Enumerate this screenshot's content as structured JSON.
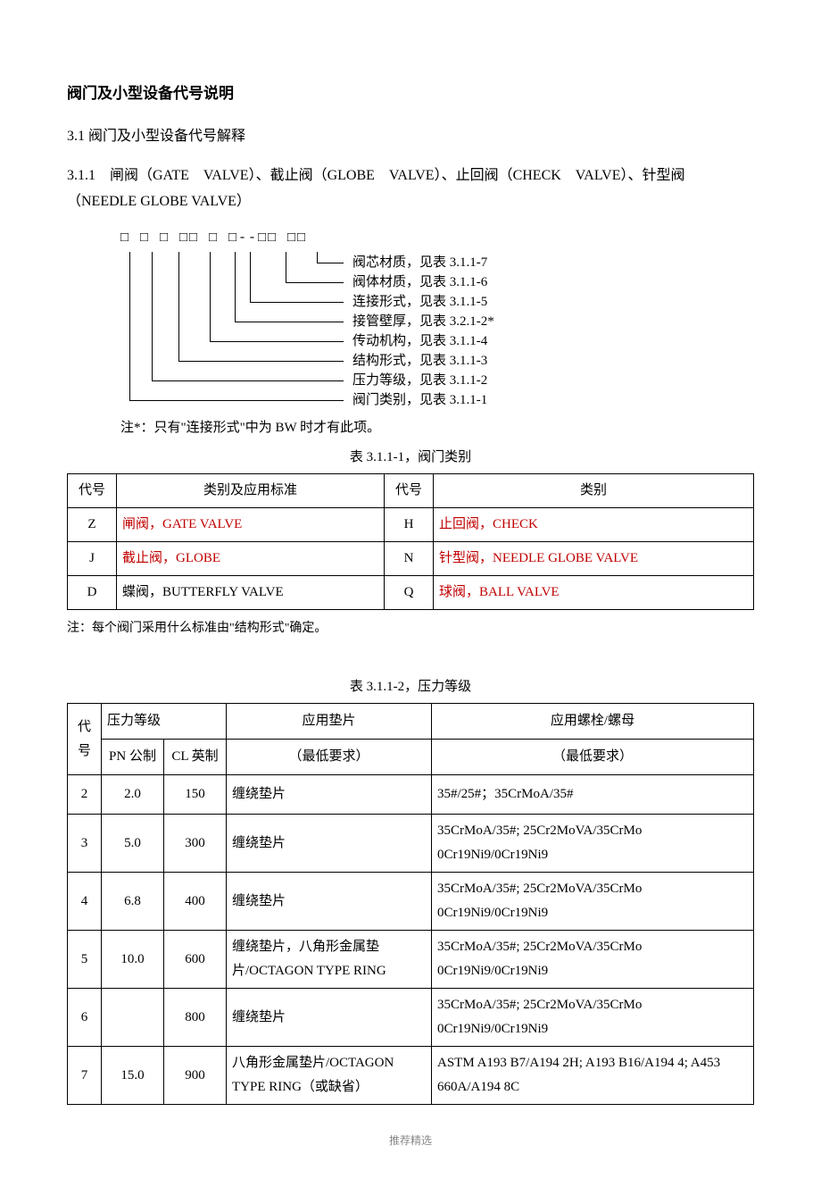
{
  "title": "阀门及小型设备代号说明",
  "section": "3.1 阀门及小型设备代号解释",
  "subsection": "3.1.1　闸阀（GATE　VALVE）、截止阀（GLOBE　VALVE）、止回阀（CHECK　VALVE）、针型阀（NEEDLE GLOBE VALVE）",
  "codeBoxes": "□ □ □ □□ □ □--□□ □□",
  "diagram": [
    {
      "label": "阀芯材质，见表 3.1.1-7"
    },
    {
      "label": "阀体材质，见表 3.1.1-6"
    },
    {
      "label": "连接形式，见表 3.1.1-5"
    },
    {
      "label": "接管壁厚，见表 3.2.1-2*"
    },
    {
      "label": "传动机构，见表 3.1.1-4"
    },
    {
      "label": "结构形式，见表 3.1.1-3"
    },
    {
      "label": "压力等级，见表 3.1.1-2"
    },
    {
      "label": "阀门类别，见表 3.1.1-1"
    }
  ],
  "diagNote": "注*：只有\"连接形式\"中为 BW 时才有此项。",
  "table1": {
    "caption": "表 3.1.1-1，阀门类别",
    "headers": [
      "代号",
      "类别及应用标准",
      "代号",
      "类别"
    ],
    "rows": [
      {
        "c1": "Z",
        "c2": "闸阀，GATE VALVE",
        "c2red": true,
        "c3": "H",
        "c4": "止回阀，CHECK",
        "c4red": true
      },
      {
        "c1": "J",
        "c2": "截止阀，GLOBE",
        "c2red": true,
        "c3": "N",
        "c4": "针型阀，NEEDLE GLOBE VALVE",
        "c4red": true
      },
      {
        "c1": "D",
        "c2": "蝶阀，BUTTERFLY VALVE",
        "c2red": false,
        "c3": "Q",
        "c4": "球阀，BALL VALVE",
        "c4red": true
      }
    ],
    "note": "注：每个阀门采用什么标准由\"结构形式\"确定。"
  },
  "table2": {
    "caption": "表 3.1.1-2，压力等级",
    "headers": {
      "code": "代号",
      "pressure": "压力等级",
      "pn": "PN 公制",
      "cl": "CL 英制",
      "gasket": "应用垫片",
      "gasketSub": "（最低要求）",
      "bolt": "应用螺栓/螺母",
      "boltSub": "（最低要求）"
    },
    "rows": [
      {
        "code": "2",
        "pn": "2.0",
        "cl": "150",
        "gasket": "缠绕垫片",
        "bolt": "35#/25#；35CrMoA/35#"
      },
      {
        "code": "3",
        "pn": "5.0",
        "cl": "300",
        "gasket": "缠绕垫片",
        "bolt": "35CrMoA/35#; 25Cr2MoVA/35CrMo 0Cr19Ni9/0Cr19Ni9"
      },
      {
        "code": "4",
        "pn": "6.8",
        "cl": "400",
        "gasket": "缠绕垫片",
        "bolt": "35CrMoA/35#; 25Cr2MoVA/35CrMo 0Cr19Ni9/0Cr19Ni9"
      },
      {
        "code": "5",
        "pn": "10.0",
        "cl": "600",
        "gasket": "缠绕垫片，八角形金属垫片/OCTAGON TYPE RING",
        "bolt": "35CrMoA/35#; 25Cr2MoVA/35CrMo 0Cr19Ni9/0Cr19Ni9"
      },
      {
        "code": "6",
        "pn": "",
        "cl": "800",
        "gasket": "缠绕垫片",
        "bolt": "35CrMoA/35#; 25Cr2MoVA/35CrMo 0Cr19Ni9/0Cr19Ni9"
      },
      {
        "code": "7",
        "pn": "15.0",
        "cl": "900",
        "gasket": "八角形金属垫片/OCTAGON TYPE RING（或缺省）",
        "bolt": "ASTM A193 B7/A194 2H; A193 B16/A194 4; A453 660A/A194 8C"
      }
    ]
  },
  "footer": "推荐精选"
}
